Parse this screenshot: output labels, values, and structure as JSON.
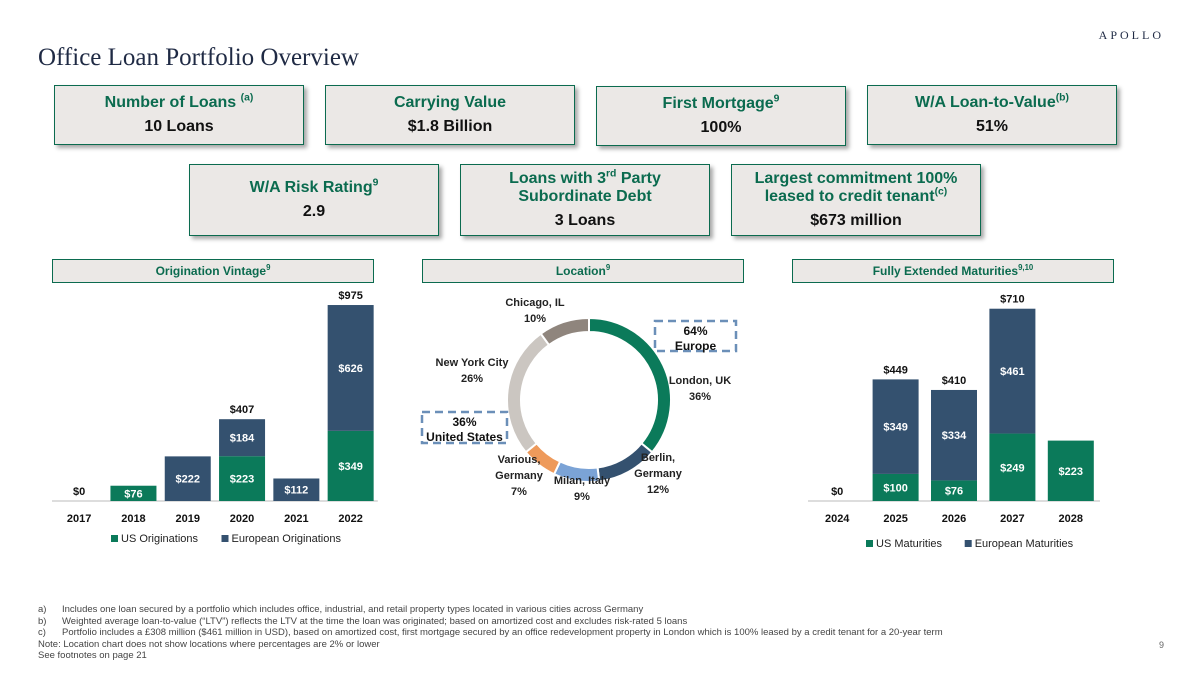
{
  "header": {
    "brand": "APOLLO",
    "title": "Office Loan Portfolio Overview",
    "page_number": "9"
  },
  "cards": [
    {
      "label": "Number of Loans",
      "sup": "(a)",
      "value": "10 Loans"
    },
    {
      "label": "Carrying Value",
      "sup": "",
      "value": "$1.8 Billion"
    },
    {
      "label": "First Mortgage",
      "sup": "9",
      "value": "100%"
    },
    {
      "label": "W/A Loan-to-Value",
      "sup": "(b)",
      "value": "51%"
    },
    {
      "label": "W/A Risk Rating",
      "sup": "9",
      "value": "2.9"
    },
    {
      "label_pre": "Loans with 3",
      "label_sup": "rd",
      "label_post": " Party Subordinate Debt",
      "value": "3 Loans"
    },
    {
      "label": "Largest commitment 100% leased to credit tenant",
      "sup": "(c)",
      "value": "$673 million"
    }
  ],
  "sections": [
    {
      "label": "Origination Vintage",
      "sup": "9"
    },
    {
      "label": "Location",
      "sup": "9"
    },
    {
      "label": "Fully Extended Maturities",
      "sup": "9,10"
    }
  ],
  "colors": {
    "us": "#0b7a5a",
    "europe": "#34516f",
    "brand_green": "#0b6b4f",
    "callout": "#6b8fb8"
  },
  "chart_data": [
    {
      "type": "bar",
      "stacked": true,
      "categories": [
        "2017",
        "2018",
        "2019",
        "2020",
        "2021",
        "2022"
      ],
      "series": [
        {
          "name": "US Originations",
          "color": "#0b7a5a",
          "values": [
            0,
            76,
            0,
            223,
            0,
            349
          ],
          "labels": [
            "",
            "$76",
            "",
            "$223",
            "",
            "$349"
          ]
        },
        {
          "name": "European Originations",
          "color": "#34516f",
          "values": [
            0,
            0,
            222,
            184,
            112,
            626
          ],
          "labels": [
            "",
            "",
            "$222",
            "$184",
            "$112",
            "$626"
          ]
        }
      ],
      "totals": [
        "$0",
        "",
        "",
        "$407",
        "",
        "$975"
      ],
      "ylim": [
        0,
        1000
      ],
      "legend": "bottom-left"
    },
    {
      "type": "pie",
      "donut": true,
      "slices": [
        {
          "name": "London, UK",
          "value": 36,
          "label": "London, UK",
          "pct": "36%",
          "color": "#0b7a5a"
        },
        {
          "name": "Berlin, Germany",
          "value": 12,
          "label": "Berlin, Germany",
          "pct": "12%",
          "color": "#34516f"
        },
        {
          "name": "Milan, Italy",
          "value": 9,
          "label": "Milan, Italy",
          "pct": "9%",
          "color": "#7ba3d6"
        },
        {
          "name": "Various, Germany",
          "value": 7,
          "label": "Various, Germany",
          "pct": "7%",
          "color": "#ee9a5b"
        },
        {
          "name": "New York City",
          "value": 26,
          "label": "New York City",
          "pct": "26%",
          "color": "#cbc6c1"
        },
        {
          "name": "Chicago, IL",
          "value": 10,
          "label": "Chicago, IL",
          "pct": "10%",
          "color": "#8f857d"
        }
      ],
      "callouts": [
        {
          "pct": "64%",
          "region": "Europe"
        },
        {
          "pct": "36%",
          "region": "United States"
        }
      ]
    },
    {
      "type": "bar",
      "stacked": true,
      "categories": [
        "2024",
        "2025",
        "2026",
        "2027",
        "2028"
      ],
      "series": [
        {
          "name": "US Maturities",
          "color": "#0b7a5a",
          "values": [
            0,
            100,
            76,
            249,
            223
          ],
          "labels": [
            "",
            "$100",
            "$76",
            "$249",
            "$223"
          ]
        },
        {
          "name": "European Maturities",
          "color": "#34516f",
          "values": [
            0,
            349,
            334,
            461,
            0
          ],
          "labels": [
            "",
            "$349",
            "$334",
            "$461",
            ""
          ]
        }
      ],
      "totals": [
        "$0",
        "$449",
        "$410",
        "$710",
        ""
      ],
      "ylim": [
        0,
        720
      ],
      "legend": "bottom-left"
    }
  ],
  "footnotes": [
    {
      "key": "a)",
      "text": "Includes one loan secured by a portfolio which includes office, industrial, and retail property types located in various cities across Germany"
    },
    {
      "key": "b)",
      "text": "Weighted average loan-to-value (“LTV”) reflects the LTV at the time the loan was originated; based on amortized cost and excludes risk-rated 5 loans"
    },
    {
      "key": "c)",
      "text": "Portfolio includes a £308 million ($461 million in USD), based on amortized cost, first mortgage secured by an office redevelopment property in London which is 100% leased by a credit tenant for a 20-year term"
    }
  ],
  "notes": [
    "Note: Location chart does not show locations where percentages are 2% or lower",
    "See footnotes on page 21"
  ]
}
